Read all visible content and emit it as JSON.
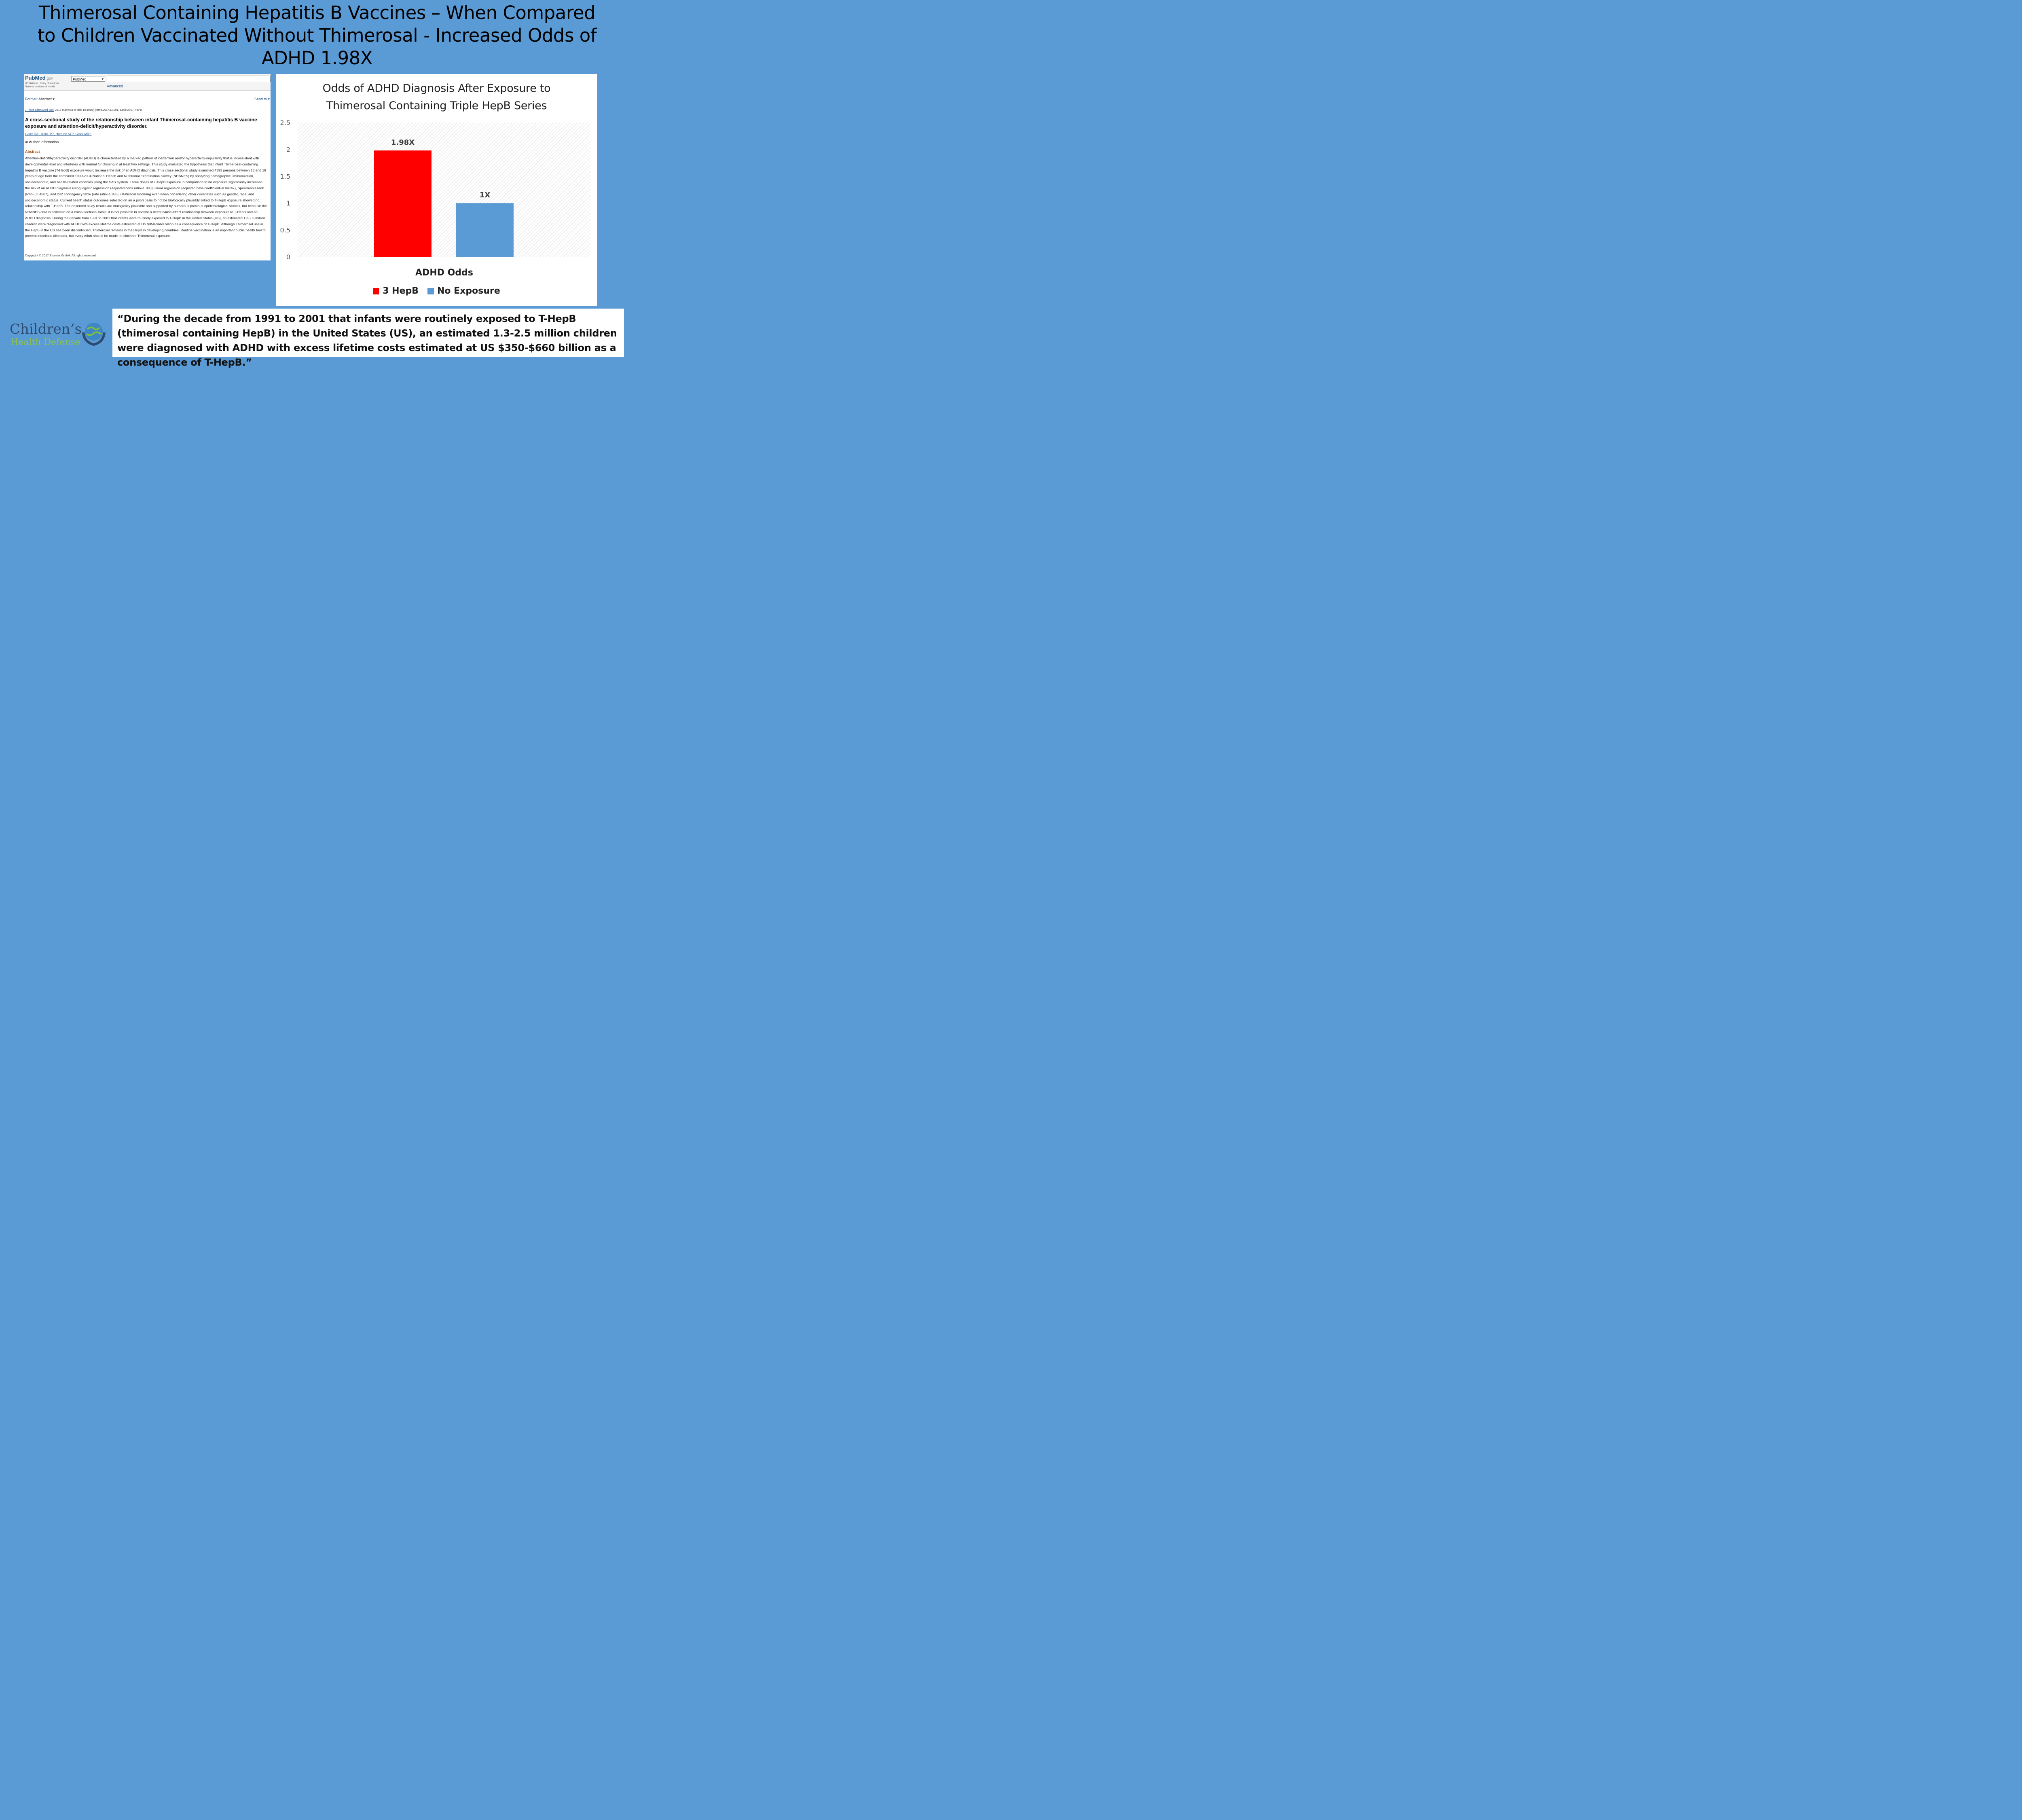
{
  "slide": {
    "title_lines": [
      "Thimerosal Containing Hepatitis B Vaccines – When Compared",
      "to Children Vaccinated Without Thimerosal - Increased Odds of",
      "ADHD 1.98X"
    ]
  },
  "pubmed": {
    "logo": "PubMed",
    "logo_gov": ".gov",
    "nlm_line1": "US National Library of Medicine",
    "nlm_line2": "National Institutes of Health",
    "db_select": "PubMed",
    "advanced": "Advanced",
    "format_label": "Format:",
    "format_value": "Abstract ▾",
    "send_to": "Send to ▾",
    "journal": "J Trace Elem Med Biol.",
    "citation": " 2018 Mar;46:1-9. doi: 10.1016/j.jtemb.2017.11.001. Epub 2017 Nov 8.",
    "title": "A cross-sectional study of the relationship between infant Thimerosal-containing hepatitis B vaccine exposure and attention-deficit/hyperactivity disorder.",
    "authors": "Geier DA¹, Kern JK², Homme KG³, Geier MR⁴.",
    "author_info": "⊕ Author information",
    "abstract_heading": "Abstract",
    "abstract": "Attention-deficit/hyperactivity disorder (ADHD) is characterized by a marked pattern of inattention and/or hyperactivity-impulsivity that is inconsistent with developmental level and interferes with normal functioning in at least two settings. This study evaluated the hypothesis that infant Thimerosal-containing hepatitis B vaccine (T-HepB) exposure would increase the risk of an ADHD diagnosis. This cross-sectional study examined 4393 persons between 13 and 19 years of age from the combined 1999-2004 National Health and Nutritional Examination Survey (NHANES) by analyzing demographic, immunization, socioeconomic, and health-related variables using the SAS system. Three doses of T-HepB exposure in comparison to no exposure significantly increased the risk of an ADHD diagnosis using logistic regression (adjusted odds ratio=1.980), linear regression (adjusted beta-coefficient=0.04747), Spearman's rank (Rho=0.04807), and 2×2 contingency table (rate ratio=1.8353) statistical modeling even when considering other covariates such as gender, race, and socioeconomic status. Current health status outcomes selected on an a priori basis to not be biologically plausibly linked to T-HepB exposure showed no relationship with T-HepB. The observed study results are biologically plausible and supported by numerous previous epidemiological studies, but because the NHANES data is collected on a cross-sectional basis, it is not possible to ascribe a direct cause-effect relationship between exposure to T-HepB and an ADHD diagnosis. During the decade from 1991 to 2001 that infants were routinely exposed to T-HepB in the United States (US), an estimated 1.3-2.5 million children were diagnosed with ADHD with excess lifetime costs estimated at US $350-$660 billion as a consequence of T-HepB. Although Thimerosal use in the HepB in the US has been discontinued, Thimerosal remains in the HepB in developing countries. Routine vaccination is an important public health tool to prevent infectious diseases, but every effort should be made to eliminate Thimerosal exposure.",
    "copyright": "Copyright © 2017 Elsevier GmbH. All rights reserved."
  },
  "chart_data": {
    "type": "bar",
    "title_lines": [
      "Odds of ADHD Diagnosis After Exposure to",
      "Thimerosal Containing Triple HepB Series"
    ],
    "categories": [
      "ADHD Odds"
    ],
    "xlabel": "ADHD Odds",
    "ylabel": "",
    "ylim": [
      0,
      2.5
    ],
    "yticks": [
      "0",
      "0.5",
      "1",
      "1.5",
      "2",
      "2.5"
    ],
    "grid": false,
    "legend_position": "bottom",
    "series": [
      {
        "name": "3 HepB",
        "values": [
          1.98
        ],
        "label": "1.98X",
        "color": "#FF0000"
      },
      {
        "name": "No Exposure",
        "values": [
          1.0
        ],
        "label": "1X",
        "color": "#5B9BD5"
      }
    ]
  },
  "quote": {
    "text": "“During the decade from 1991 to 2001 that infants were routinely exposed to T-HepB (thimerosal containing HepB) in the United States (US), an estimated 1.3-2.5 million children were diagnosed with ADHD with excess lifetime costs estimated at US $350-$660 billion as a consequence of T-HepB.”"
  },
  "logo": {
    "line1": "Children’s",
    "line2": "Health Defense"
  },
  "colors": {
    "background": "#5B9BD5",
    "bar_exposed": "#FF0000",
    "bar_unexposed": "#5B9BD5"
  }
}
